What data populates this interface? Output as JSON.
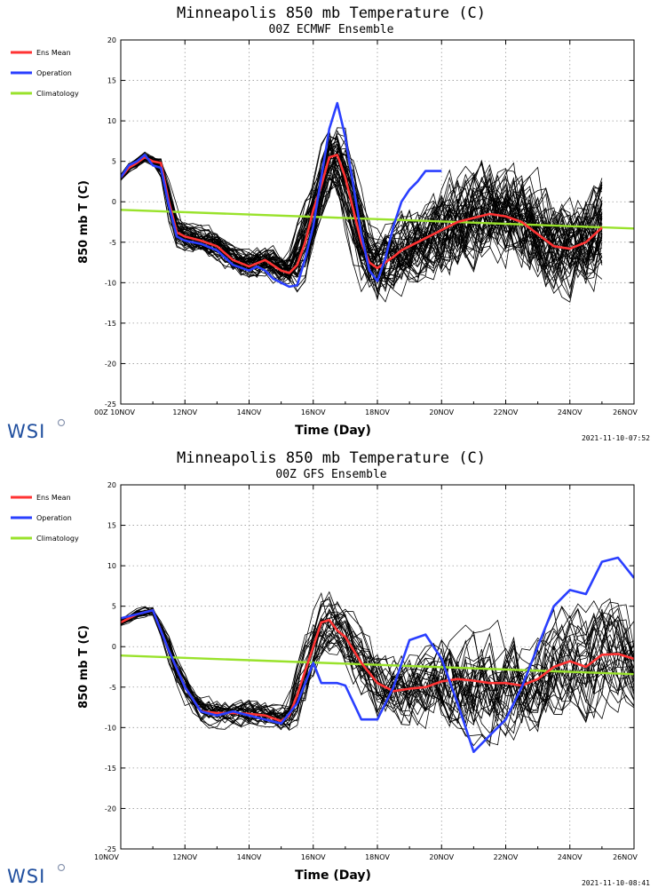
{
  "chart_data": [
    {
      "type": "line",
      "title": "Minneapolis 850 mb Temperature (C)",
      "subtitle": "00Z ECMWF Ensemble",
      "xlabel": "Time (Day)",
      "ylabel": "850 mb T (C)",
      "xlim": [
        0,
        16
      ],
      "ylim": [
        -25,
        20
      ],
      "yticks": [
        20,
        15,
        10,
        5,
        0,
        -5,
        -10,
        -15,
        -20,
        -25
      ],
      "xtick_labels": [
        {
          "x": 0,
          "label": "00Z 10NOV"
        },
        {
          "x": 2,
          "label": "12NOV"
        },
        {
          "x": 4,
          "label": "14NOV"
        },
        {
          "x": 6,
          "label": "16NOV"
        },
        {
          "x": 8,
          "label": "18NOV"
        },
        {
          "x": 10,
          "label": "20NOV"
        },
        {
          "x": 12,
          "label": "22NOV"
        },
        {
          "x": 14,
          "label": "24NOV"
        },
        {
          "x": 16,
          "label": "26NOV"
        }
      ],
      "grid": true,
      "legend_position": "left",
      "timestamp": "2021-11-10-07:52",
      "logo": "WSI",
      "ensemble_member_count": 50,
      "ensemble_end_x": 15,
      "series": [
        {
          "name": "Ens Mean",
          "color": "#ff3333",
          "width": 2.6,
          "x": [
            0,
            0.25,
            0.5,
            0.75,
            1,
            1.25,
            1.5,
            1.75,
            2,
            2.5,
            3,
            3.5,
            4,
            4.5,
            5,
            5.25,
            5.5,
            5.75,
            6,
            6.25,
            6.5,
            6.75,
            7,
            7.25,
            7.5,
            7.75,
            8,
            8.25,
            8.5,
            8.75,
            9,
            9.5,
            10,
            10.5,
            11,
            11.5,
            12,
            12.5,
            13,
            13.5,
            14,
            14.5,
            15
          ],
          "y": [
            3,
            4.2,
            4.8,
            5.5,
            5,
            4.8,
            0,
            -3.8,
            -4.3,
            -4.8,
            -5.5,
            -7.2,
            -8,
            -7.2,
            -8.5,
            -8.8,
            -7.8,
            -5,
            -1,
            2,
            5.5,
            5.8,
            3,
            -1,
            -5,
            -7.5,
            -8.2,
            -7.5,
            -6.8,
            -6,
            -5.5,
            -4.5,
            -3.5,
            -2.5,
            -2,
            -1.5,
            -1.8,
            -2.5,
            -4,
            -5.5,
            -5.8,
            -5,
            -3.2
          ]
        },
        {
          "name": "Operation",
          "color": "#2a3fff",
          "width": 2.6,
          "x": [
            0,
            0.25,
            0.5,
            0.75,
            1,
            1.25,
            1.5,
            1.75,
            2,
            2.5,
            3,
            3.5,
            4,
            4.25,
            4.5,
            4.75,
            5,
            5.25,
            5.5,
            5.75,
            6,
            6.25,
            6.5,
            6.75,
            7,
            7.25,
            7.5,
            7.75,
            8,
            8.25,
            8.5,
            8.75,
            9,
            9.25,
            9.5,
            9.75,
            10
          ],
          "y": [
            3,
            4.5,
            5,
            5.8,
            4.5,
            4.2,
            -0.5,
            -4.3,
            -4.8,
            -5.2,
            -6,
            -7.8,
            -8.5,
            -8,
            -8.5,
            -9.5,
            -10,
            -10.5,
            -10.3,
            -7,
            -3,
            3,
            9,
            12.2,
            8,
            2,
            -4,
            -8.5,
            -9.8,
            -7,
            -3,
            0,
            1.5,
            2.5,
            3.8,
            3.8,
            3.8
          ]
        },
        {
          "name": "Climatology",
          "color": "#99e22b",
          "width": 2.4,
          "x": [
            0,
            16
          ],
          "y": [
            -1,
            -3.3
          ]
        }
      ]
    },
    {
      "type": "line",
      "title": "Minneapolis 850 mb Temperature (C)",
      "subtitle": "00Z GFS Ensemble",
      "xlabel": "Time (Day)",
      "ylabel": "850 mb T (C)",
      "xlim": [
        0,
        16
      ],
      "ylim": [
        -25,
        20
      ],
      "yticks": [
        20,
        15,
        10,
        5,
        0,
        -5,
        -10,
        -15,
        -20,
        -25
      ],
      "xtick_labels": [
        {
          "x": 0,
          "label": "10NOV"
        },
        {
          "x": 2,
          "label": "12NOV"
        },
        {
          "x": 4,
          "label": "14NOV"
        },
        {
          "x": 6,
          "label": "16NOV"
        },
        {
          "x": 8,
          "label": "18NOV"
        },
        {
          "x": 10,
          "label": "20NOV"
        },
        {
          "x": 12,
          "label": "22NOV"
        },
        {
          "x": 14,
          "label": "24NOV"
        },
        {
          "x": 16,
          "label": "26NOV"
        }
      ],
      "grid": true,
      "legend_position": "left",
      "timestamp": "2021-11-10-08:41",
      "logo": "WSI",
      "ensemble_member_count": 31,
      "ensemble_end_x": 16,
      "series": [
        {
          "name": "Ens Mean",
          "color": "#ff3333",
          "width": 2.6,
          "x": [
            0,
            0.5,
            1,
            1.5,
            2,
            2.5,
            3,
            3.5,
            4,
            4.5,
            5,
            5.25,
            5.5,
            5.75,
            6,
            6.25,
            6.5,
            6.75,
            7,
            7.5,
            8,
            8.5,
            9,
            9.5,
            10,
            10.5,
            11,
            11.5,
            12,
            12.5,
            13,
            13.5,
            14,
            14.5,
            15,
            15.5,
            16
          ],
          "y": [
            3,
            4,
            4.5,
            -0.5,
            -5,
            -8,
            -8.2,
            -8.2,
            -8.3,
            -8.5,
            -9.2,
            -8.5,
            -6,
            -3,
            0,
            3,
            3.3,
            2,
            1.2,
            -2,
            -4.5,
            -5.5,
            -5.2,
            -5,
            -4.3,
            -4,
            -4.2,
            -4.5,
            -4.5,
            -4.8,
            -4,
            -2.5,
            -1.8,
            -2.5,
            -1,
            -0.9,
            -1.5
          ]
        },
        {
          "name": "Operation",
          "color": "#2a3fff",
          "width": 2.6,
          "x": [
            0,
            0.5,
            1,
            1.5,
            2,
            2.5,
            3,
            3.5,
            4,
            4.5,
            5,
            5.5,
            6,
            6.25,
            6.5,
            6.75,
            7,
            7.5,
            8,
            8.5,
            9,
            9.5,
            10,
            10.5,
            11,
            11.5,
            12,
            12.5,
            13,
            13.5,
            14,
            14.5,
            15,
            15.5,
            16
          ],
          "y": [
            3.5,
            4,
            4.5,
            -0.5,
            -5,
            -8,
            -8.5,
            -8,
            -8.5,
            -9,
            -9.5,
            -7,
            -2,
            -4.5,
            -4.5,
            -4.5,
            -4.8,
            -9,
            -9,
            -5,
            0.8,
            1.5,
            -1.5,
            -7,
            -13,
            -11,
            -9,
            -5,
            0,
            5,
            7,
            6.5,
            10.5,
            11,
            8.5
          ]
        },
        {
          "name": "Climatology",
          "color": "#99e22b",
          "width": 2.4,
          "x": [
            0,
            16
          ],
          "y": [
            -1.1,
            -3.4
          ]
        }
      ]
    }
  ]
}
